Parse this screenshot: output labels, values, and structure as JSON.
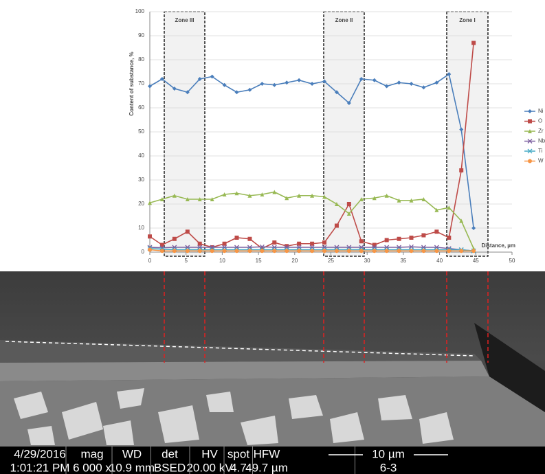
{
  "chart_data": {
    "type": "line",
    "y_label": "Content of substance, %",
    "x_label": "Distance, µm",
    "annotations": [
      "Zone III",
      "Zone II",
      "Zone I"
    ],
    "x": [
      0,
      1.7,
      3.4,
      5.2,
      6.9,
      8.6,
      10.3,
      12,
      13.8,
      15.5,
      17.2,
      18.9,
      20.6,
      22.4,
      24.1,
      25.8,
      27.5,
      29.2,
      31,
      32.7,
      34.4,
      36.1,
      37.8,
      39.6,
      41.3,
      43,
      44.7
    ],
    "series": [
      {
        "name": "Ni",
        "color": "#4a7ebb",
        "marker": "diamond",
        "values": [
          69,
          72,
          68,
          66.5,
          72,
          73,
          69.5,
          66.5,
          67.5,
          70,
          69.5,
          70.5,
          71.5,
          70,
          71,
          66.5,
          62,
          72,
          71.5,
          69,
          70.5,
          70,
          68.5,
          70.5,
          74,
          51,
          10
        ]
      },
      {
        "name": "O",
        "color": "#be4b48",
        "marker": "square",
        "values": [
          6.5,
          3,
          5.5,
          8.5,
          3.5,
          2,
          3.5,
          6,
          5.5,
          1.5,
          4,
          2.5,
          3.5,
          3.5,
          4,
          11,
          20,
          4.5,
          3,
          5,
          5.5,
          6,
          7,
          8.5,
          6,
          34,
          87
        ]
      },
      {
        "name": "Zr",
        "color": "#98b954",
        "marker": "triangle",
        "values": [
          20.5,
          22,
          23.5,
          22,
          22,
          22,
          24,
          24.5,
          23.5,
          24,
          25,
          22.5,
          23.5,
          23.5,
          23,
          20,
          16,
          22,
          22.5,
          23.5,
          21.5,
          21.5,
          22,
          17.5,
          18.5,
          13,
          1.5
        ]
      },
      {
        "name": "Nb",
        "color": "#7d60a0",
        "marker": "x",
        "values": [
          2,
          1.8,
          2,
          2,
          2,
          2,
          2,
          2,
          2,
          2.2,
          2,
          2,
          2,
          2,
          2,
          2,
          2,
          2,
          2,
          2,
          2,
          2.2,
          2,
          2,
          1.5,
          1,
          0.5
        ]
      },
      {
        "name": "Ti",
        "color": "#46aac5",
        "marker": "x",
        "values": [
          1.5,
          1.2,
          1,
          1,
          1,
          1,
          1,
          1,
          1,
          1,
          1,
          1,
          1,
          1,
          1,
          1,
          1,
          1,
          1,
          1,
          1,
          1,
          1,
          1,
          1,
          1,
          0.5
        ]
      },
      {
        "name": "W",
        "color": "#f79646",
        "marker": "circle",
        "values": [
          1,
          0.5,
          0.5,
          0.5,
          0.5,
          0.5,
          0.5,
          0.5,
          0.5,
          0.5,
          0.5,
          0.5,
          0.5,
          0.5,
          0.5,
          0.5,
          0.5,
          0.5,
          0.5,
          0.5,
          0.5,
          0.5,
          0.5,
          0.5,
          0.5,
          0.5,
          0.5
        ]
      }
    ],
    "xlim": [
      0,
      50
    ],
    "xticks": [
      0,
      5,
      10,
      15,
      20,
      25,
      30,
      35,
      40,
      45,
      50
    ],
    "ylim": [
      0,
      100
    ],
    "yticks": [
      0,
      10,
      20,
      30,
      40,
      50,
      60,
      70,
      80,
      90,
      100
    ],
    "grid": true,
    "legend": "right"
  },
  "info_bar": {
    "headers": [
      "4/29/2016",
      "mag",
      "WD",
      "det",
      "HV",
      "spot",
      "HFW",
      "10 µm"
    ],
    "values": [
      "1:01:21 PM",
      "6 000 x",
      "10.9 mm",
      "BSED",
      "20.00 kV",
      "4.7",
      "49.7 µm",
      "6-3"
    ]
  }
}
